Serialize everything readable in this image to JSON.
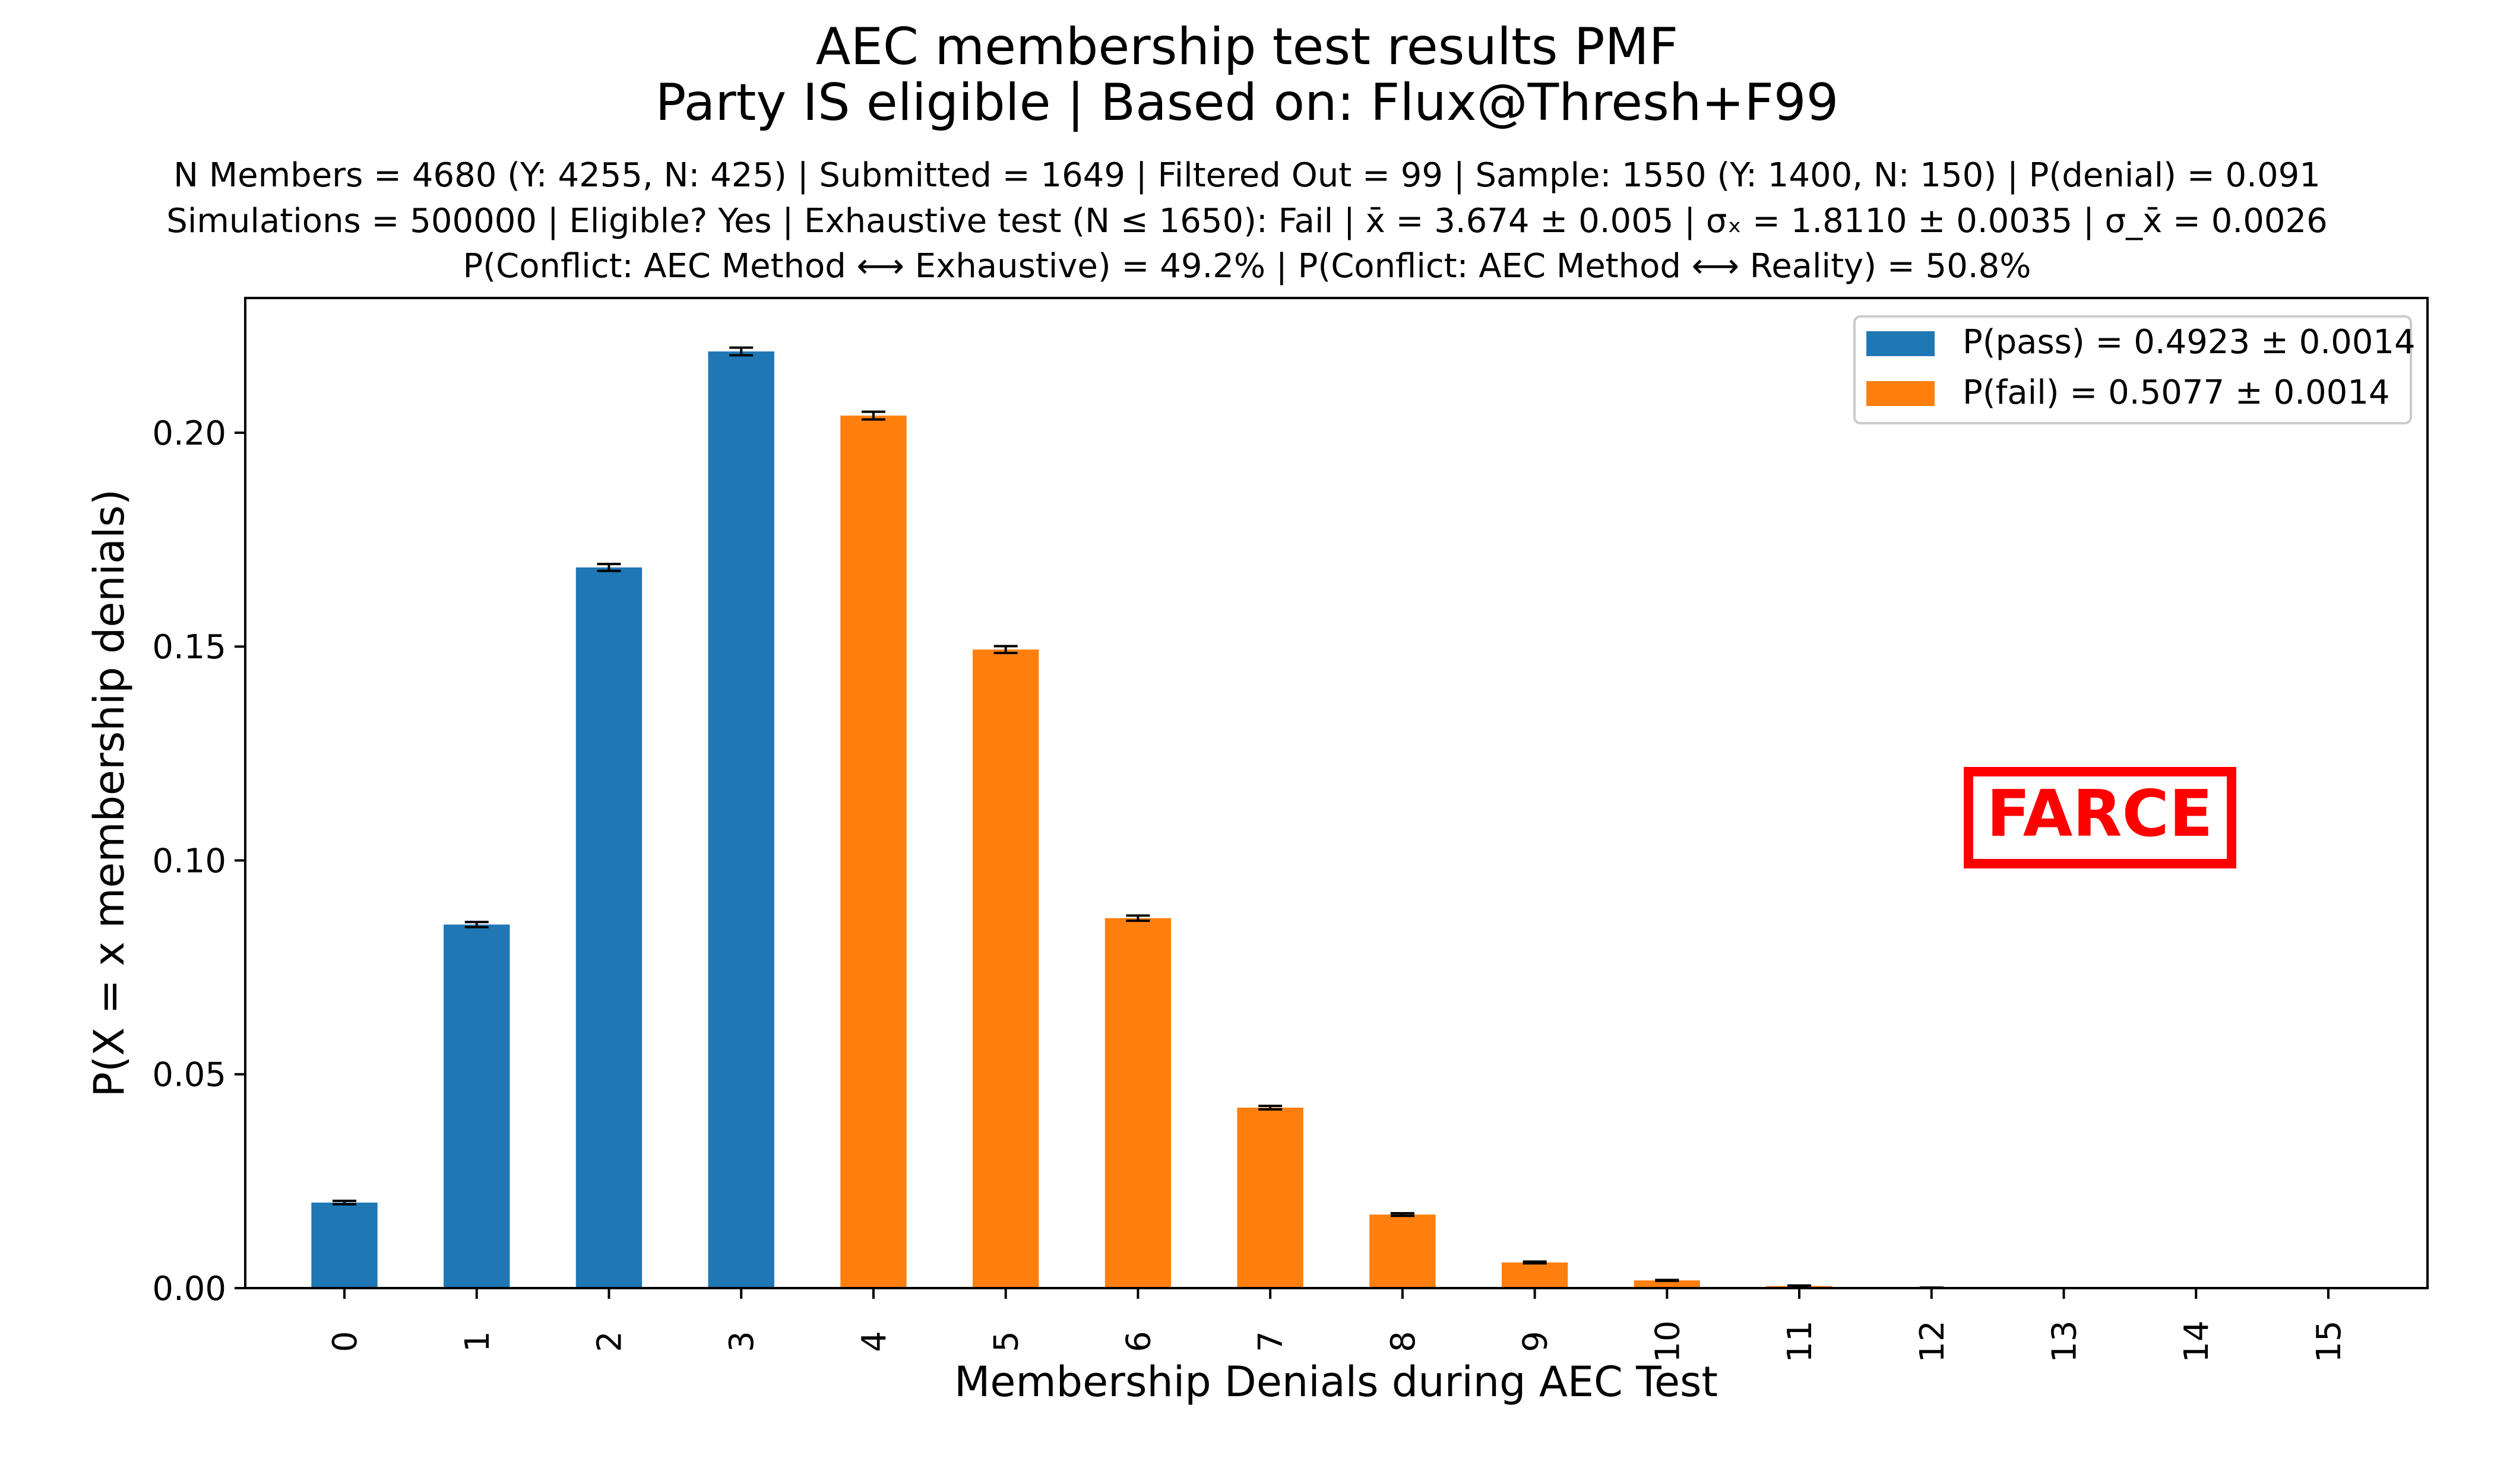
{
  "chart_data": {
    "type": "bar",
    "title": "AEC membership test results PMF",
    "subtitle": "Party IS eligible | Based on: Flux@Thresh+F99",
    "info_lines": [
      "N Members = 4680 (Y: 4255, N: 425) | Submitted = 1649 | Filtered Out = 99 | Sample: 1550 (Y: 1400, N: 150) | P(denial) = 0.091",
      "Simulations = 500000 | Eligible? Yes | Exhaustive test (N ≤ 1650): Fail | x̄ = 3.674 ± 0.005 | σₓ = 1.8110 ± 0.0035 | σ_x̄ = 0.0026",
      "P(Conflict: AEC Method ⟷ Exhaustive) = 49.2% | P(Conflict: AEC Method ⟷ Reality) = 50.8%"
    ],
    "xlabel": "Membership Denials during AEC Test",
    "ylabel": "P(X = x membership denials)",
    "categories": [
      "0",
      "1",
      "2",
      "3",
      "4",
      "5",
      "6",
      "7",
      "8",
      "9",
      "10",
      "11",
      "12",
      "13",
      "14",
      "15"
    ],
    "values": [
      0.02,
      0.085,
      0.1685,
      0.219,
      0.204,
      0.1493,
      0.0865,
      0.0422,
      0.0172,
      0.006,
      0.0018,
      0.0005,
      0.0001,
      0.0,
      0.0,
      0.0
    ],
    "errors": [
      0.0004,
      0.0006,
      0.0008,
      0.0009,
      0.0009,
      0.0008,
      0.0006,
      0.0004,
      0.0003,
      0.0002,
      0.0001,
      0.0001,
      0.0,
      0.0,
      0.0,
      0.0
    ],
    "pass_fail": [
      "pass",
      "pass",
      "pass",
      "pass",
      "fail",
      "fail",
      "fail",
      "fail",
      "fail",
      "fail",
      "fail",
      "fail",
      "fail",
      "fail",
      "fail",
      "fail"
    ],
    "ylim": [
      0,
      0.2315
    ],
    "yticks": [
      "0.00",
      "0.05",
      "0.10",
      "0.15",
      "0.20"
    ],
    "legend": {
      "placement": "top-right",
      "entries": [
        {
          "key": "pass",
          "label": "P(pass) = 0.4923 ± 0.0014",
          "color": "#1f77b4"
        },
        {
          "key": "fail",
          "label": "P(fail) = 0.5077 ± 0.0014",
          "color": "#ff7f0e"
        }
      ]
    },
    "stamp": {
      "text": "FARCE",
      "color": "#ff0000"
    },
    "grid": false
  }
}
